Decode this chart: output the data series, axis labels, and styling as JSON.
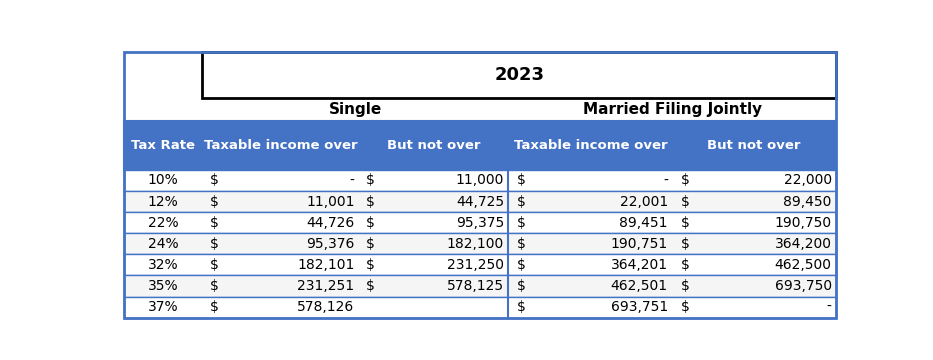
{
  "year": "2023",
  "single_label": "Single",
  "married_label": "Married Filing Jointly",
  "header_cols": [
    "Tax Rate",
    "Taxable income over",
    "But not over",
    "Taxable income over",
    "But not over"
  ],
  "header_bg": "#4472C4",
  "header_fg": "#FFFFFF",
  "border_color": "#4472C4",
  "rows": [
    [
      "10%",
      "$",
      "-",
      "$",
      "11,000",
      "$",
      "-",
      "$",
      "22,000"
    ],
    [
      "12%",
      "$",
      "11,001",
      "$",
      "44,725",
      "$",
      "22,001",
      "$",
      "89,450"
    ],
    [
      "22%",
      "$",
      "44,726",
      "$",
      "95,375",
      "$",
      "89,451",
      "$",
      "190,750"
    ],
    [
      "24%",
      "$",
      "95,376",
      "$",
      "182,100",
      "$",
      "190,751",
      "$",
      "364,200"
    ],
    [
      "32%",
      "$",
      "182,101",
      "$",
      "231,250",
      "$",
      "364,201",
      "$",
      "462,500"
    ],
    [
      "35%",
      "$",
      "231,251",
      "$",
      "578,125",
      "$",
      "462,501",
      "$",
      "693,750"
    ],
    [
      "37%",
      "$",
      "578,126",
      "",
      "",
      "$",
      "693,751",
      "$",
      "-"
    ]
  ],
  "figsize": [
    9.33,
    3.6
  ],
  "dpi": 100
}
